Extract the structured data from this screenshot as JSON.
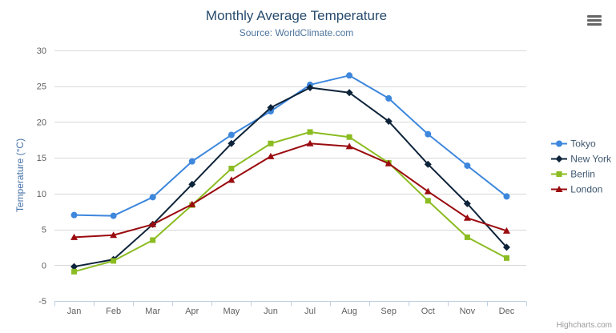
{
  "chart": {
    "title": "Monthly Average Temperature",
    "subtitle": "Source: WorldClimate.com",
    "credit": "Highcharts.com",
    "context_menu_icon": "hamburger-icon"
  },
  "chart_data": {
    "type": "line",
    "title": "Monthly Average Temperature",
    "subtitle": "Source: WorldClimate.com",
    "categories": [
      "Jan",
      "Feb",
      "Mar",
      "Apr",
      "May",
      "Jun",
      "Jul",
      "Aug",
      "Sep",
      "Oct",
      "Nov",
      "Dec"
    ],
    "series": [
      {
        "name": "Tokyo",
        "color": "#3d87dd",
        "marker": "circle",
        "values": [
          7.0,
          6.9,
          9.5,
          14.5,
          18.2,
          21.5,
          25.2,
          26.5,
          23.3,
          18.3,
          13.9,
          9.6
        ]
      },
      {
        "name": "New York",
        "color": "#0d233a",
        "marker": "diamond",
        "values": [
          -0.2,
          0.8,
          5.7,
          11.3,
          17.0,
          22.0,
          24.8,
          24.1,
          20.1,
          14.1,
          8.6,
          2.5
        ]
      },
      {
        "name": "Berlin",
        "color": "#8bbc21",
        "marker": "square",
        "values": [
          -0.9,
          0.6,
          3.5,
          8.4,
          13.5,
          17.0,
          18.6,
          17.9,
          14.3,
          9.0,
          3.9,
          1.0
        ]
      },
      {
        "name": "London",
        "color": "#9a0b0f",
        "marker": "triangle",
        "values": [
          3.9,
          4.2,
          5.7,
          8.5,
          11.9,
          15.2,
          17.0,
          16.6,
          14.2,
          10.3,
          6.6,
          4.8
        ]
      }
    ],
    "xlabel": "",
    "ylabel": "Temperature (°C)",
    "ylim": [
      -5,
      30
    ],
    "ytick_interval": 5,
    "grid": true,
    "legend_position": "right",
    "colors": {
      "grid_line": "#d8d8d8",
      "axis_line": "#c0d0e0",
      "axis_label": "#606060",
      "title": "#274b6d",
      "subtitle": "#4d759e",
      "axis_title": "#4572a7",
      "legend_text": "#3e576f",
      "credit": "#999999"
    }
  }
}
